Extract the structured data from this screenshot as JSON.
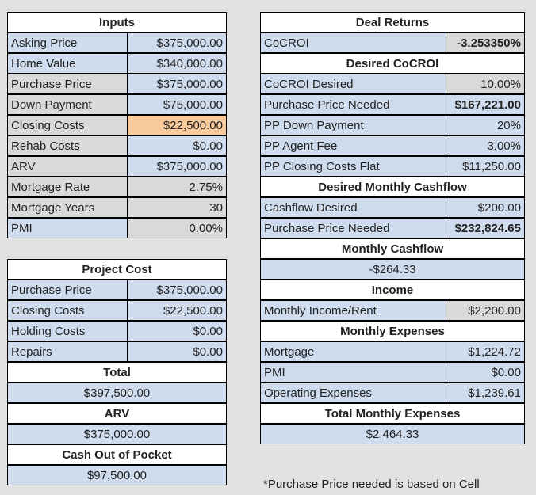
{
  "inputs": {
    "title": "Inputs",
    "rows": [
      {
        "label": "Asking Price",
        "value": "$375,000.00"
      },
      {
        "label": "Home Value",
        "value": "$340,000.00"
      },
      {
        "label": "Purchase Price",
        "value": "$375,000.00"
      },
      {
        "label": "Down Payment",
        "value": "$75,000.00"
      },
      {
        "label": "Closing Costs",
        "value": "$22,500.00"
      },
      {
        "label": "Rehab Costs",
        "value": "$0.00"
      },
      {
        "label": "ARV",
        "value": "$375,000.00"
      },
      {
        "label": "Mortgage Rate",
        "value": "2.75%"
      },
      {
        "label": "Mortgage Years",
        "value": "30"
      },
      {
        "label": "PMI",
        "value": "0.00%"
      }
    ]
  },
  "project_cost": {
    "title": "Project Cost",
    "rows": [
      {
        "label": "Purchase Price",
        "value": "$375,000.00"
      },
      {
        "label": "Closing Costs",
        "value": "$22,500.00"
      },
      {
        "label": "Holding Costs",
        "value": "$0.00"
      },
      {
        "label": "Repairs",
        "value": "$0.00"
      }
    ],
    "total_label": "Total",
    "total_value": "$397,500.00",
    "arv_label": "ARV",
    "arv_value": "$375,000.00",
    "cash_label": "Cash Out of Pocket",
    "cash_value": "$97,500.00"
  },
  "deal_returns": {
    "title": "Deal Returns",
    "cocroi_label": "CoCROI",
    "cocroi_value": "-3.253350%",
    "desired_title": "Desired CoCROI",
    "desired_rows": [
      {
        "label": "CoCROI Desired",
        "value": "10.00%"
      },
      {
        "label": "Purchase Price Needed",
        "value": "$167,221.00"
      },
      {
        "label": "PP Down Payment",
        "value": "20%"
      },
      {
        "label": "PP Agent Fee",
        "value": "3.00%"
      },
      {
        "label": "PP Closing Costs Flat",
        "value": "$11,250.00"
      }
    ],
    "cashflow_title": "Desired Monthly Cashflow",
    "cashflow_rows": [
      {
        "label": "Cashflow Desired",
        "value": "$200.00"
      },
      {
        "label": "Purchase Price Needed",
        "value": "$232,824.65"
      }
    ],
    "monthly_cashflow_title": "Monthly Cashflow",
    "monthly_cashflow_value": "-$264.33",
    "income_title": "Income",
    "income_label": "Monthly Income/Rent",
    "income_value": "$2,200.00",
    "expenses_title": "Monthly Expenses",
    "expense_rows": [
      {
        "label": "Mortgage",
        "value": "$1,224.72"
      },
      {
        "label": "PMI",
        "value": "$0.00"
      },
      {
        "label": "Operating Expenses",
        "value": "$1,239.61"
      }
    ],
    "total_expenses_title": "Total Monthly Expenses",
    "total_expenses_value": "$2,464.33",
    "footnote": "*Purchase Price needed is based on Cell"
  }
}
